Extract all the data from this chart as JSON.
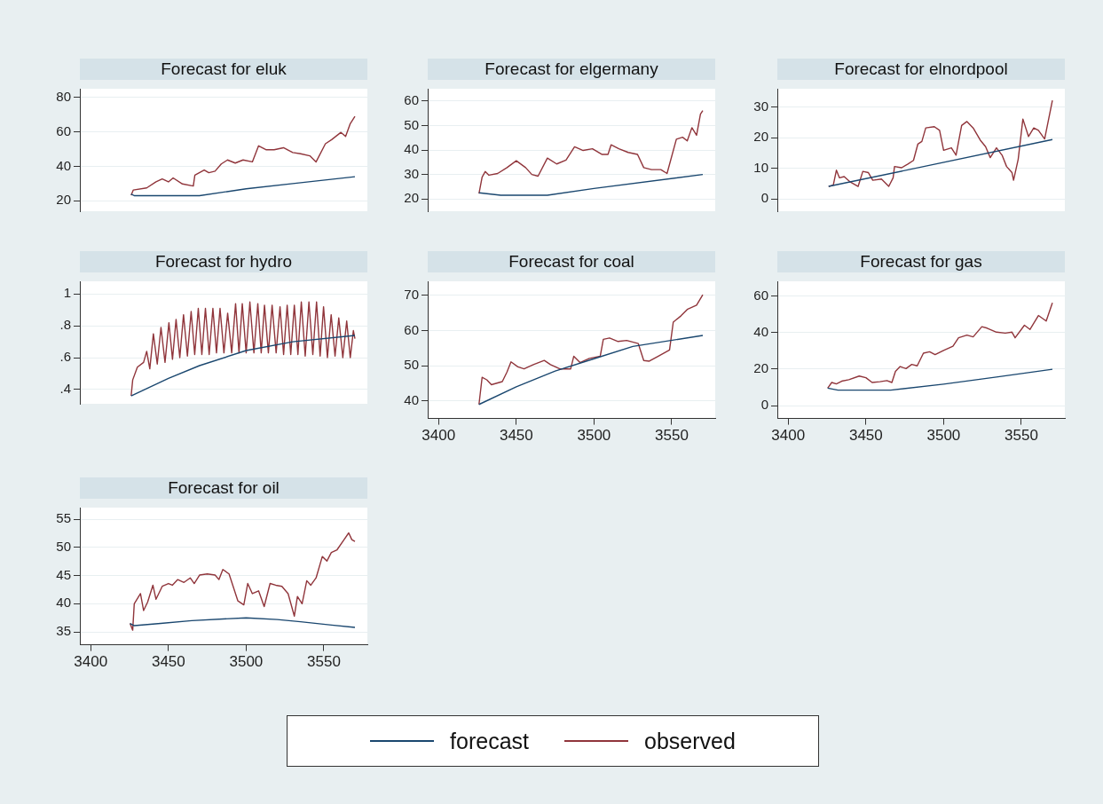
{
  "chart_data": [
    {
      "type": "line",
      "title": "Forecast for eluk",
      "xlim": [
        3393,
        3578
      ],
      "xticks": [
        3400,
        3450,
        3500,
        3550
      ],
      "ylim": [
        14,
        85
      ],
      "yticks": [
        20,
        40,
        60,
        80
      ],
      "grid": "y",
      "tick_labels": "y",
      "legend": "bottom",
      "series": [
        {
          "name": "forecast",
          "color": "#1a476f",
          "x": [
            3426,
            3428,
            3470,
            3500,
            3530,
            3570
          ],
          "values": [
            24,
            23,
            23,
            27,
            30,
            34
          ]
        },
        {
          "name": "observed",
          "color": "#90353b",
          "x": [
            3426,
            3427.4,
            3436,
            3442,
            3446,
            3450,
            3453,
            3459,
            3466,
            3467,
            3473,
            3476,
            3480,
            3484,
            3488,
            3493,
            3498,
            3504,
            3508,
            3513,
            3518,
            3524,
            3530,
            3535,
            3541,
            3545,
            3551,
            3555,
            3561,
            3564,
            3567,
            3570
          ],
          "values": [
            23.3,
            26.3,
            27.5,
            31,
            32.7,
            31,
            33.3,
            29.8,
            28.6,
            34.9,
            37.9,
            36.3,
            37.2,
            41.4,
            43.7,
            41.9,
            43.7,
            42.6,
            51.9,
            49.6,
            49.6,
            50.8,
            48,
            47.3,
            46.1,
            42.6,
            53.1,
            55.5,
            59.7,
            57.3,
            64.8,
            69
          ]
        }
      ]
    },
    {
      "type": "line",
      "title": "Forecast for elgermany",
      "xlim": [
        3393,
        3578
      ],
      "xticks": [
        3400,
        3450,
        3500,
        3550
      ],
      "ylim": [
        15,
        65
      ],
      "yticks": [
        20,
        30,
        40,
        50,
        60
      ],
      "grid": "y",
      "tick_labels": "y",
      "series": [
        {
          "color": "#1a476f",
          "x": [
            3426,
            3440,
            3470,
            3500,
            3570
          ],
          "values": [
            22.5,
            21.5,
            21.5,
            24.3,
            30
          ]
        },
        {
          "color": "#90353b",
          "x": [
            3426,
            3428,
            3430,
            3432.4,
            3438,
            3444,
            3450,
            3456,
            3460,
            3464,
            3470,
            3476,
            3482,
            3487.5,
            3493,
            3499,
            3505,
            3509,
            3511,
            3516,
            3522,
            3528,
            3532,
            3537,
            3543,
            3547,
            3553,
            3557,
            3560,
            3563,
            3566,
            3568.5,
            3570
          ],
          "values": [
            22.2,
            28.9,
            31.2,
            29.7,
            30.4,
            32.8,
            35.6,
            32.8,
            30,
            29.3,
            36.7,
            34.3,
            35.9,
            41.3,
            39.8,
            40.5,
            38.2,
            38.2,
            42.1,
            40.5,
            39,
            38.2,
            32.8,
            32,
            32,
            30.4,
            44.4,
            45.2,
            43.7,
            49.1,
            46,
            54.6,
            56.1
          ]
        }
      ]
    },
    {
      "type": "line",
      "title": "Forecast for elnordpool",
      "xlim": [
        3393,
        3578
      ],
      "xticks": [
        3400,
        3450,
        3500,
        3550
      ],
      "ylim": [
        -4,
        36
      ],
      "yticks": [
        0,
        10,
        20,
        30
      ],
      "grid": "y",
      "tick_labels": "y",
      "series": [
        {
          "color": "#1a476f",
          "x": [
            3426,
            3570
          ],
          "values": [
            4.1,
            19.4
          ]
        },
        {
          "color": "#90353b",
          "x": [
            3426,
            3429,
            3431,
            3433,
            3436,
            3439.5,
            3445,
            3448,
            3451.6,
            3454.4,
            3460,
            3464.7,
            3467.5,
            3468.4,
            3473,
            3477,
            3480.6,
            3483.4,
            3486,
            3488.5,
            3494,
            3497.4,
            3500,
            3505,
            3508,
            3511.6,
            3515,
            3519,
            3523.6,
            3527,
            3530,
            3534,
            3537.6,
            3540.5,
            3544,
            3545,
            3548,
            3551,
            3554.6,
            3558,
            3561,
            3565,
            3570
          ],
          "values": [
            4.1,
            4.5,
            9.4,
            6.9,
            7.3,
            5.7,
            4.1,
            9,
            8.6,
            6.1,
            6.5,
            4.1,
            6.9,
            10.6,
            10.2,
            11.4,
            12.6,
            17.9,
            18.8,
            23.2,
            23.6,
            22.4,
            15.9,
            16.7,
            14.3,
            24,
            25.3,
            23.2,
            19.2,
            17.1,
            13.5,
            16.7,
            14.3,
            10.6,
            8.6,
            6.1,
            13,
            26.1,
            20.4,
            23.2,
            22.4,
            19.6,
            32.2
          ]
        }
      ]
    },
    {
      "type": "line",
      "title": "Forecast for hydro",
      "xlim": [
        3393,
        3578
      ],
      "xticks": [
        3400,
        3450,
        3500,
        3550
      ],
      "ylim": [
        0.31,
        1.08
      ],
      "yticks": [
        {
          "value": 0.4,
          "label": ".4"
        },
        {
          "value": 0.6,
          "label": ".6"
        },
        {
          "value": 0.8,
          "label": ".8"
        },
        1
      ],
      "grid": "y",
      "tick_labels": "y",
      "series": [
        {
          "color": "#1a476f",
          "x": [
            3426,
            3450,
            3470,
            3500,
            3530,
            3570
          ],
          "values": [
            0.36,
            0.47,
            0.55,
            0.645,
            0.7,
            0.74
          ]
        },
        {
          "color": "#90353b",
          "x": [
            3426,
            3427,
            3430,
            3434,
            3436,
            3438,
            3440.3,
            3442.8,
            3445.2,
            3447.8,
            3450.3,
            3452.6,
            3454.9,
            3457.3,
            3459.7,
            3462.2,
            3464.6,
            3466.9,
            3469.2,
            3471.5,
            3473.8,
            3476.2,
            3478.6,
            3480.9,
            3483.2,
            3485.7,
            3488.1,
            3490.7,
            3493.2,
            3495.4,
            3497.5,
            3500,
            3502.4,
            3505,
            3507.5,
            3509.7,
            3511.8,
            3514.3,
            3516.7,
            3519.3,
            3521.8,
            3524.1,
            3526.4,
            3528.7,
            3531,
            3533.3,
            3535.5,
            3538,
            3540.4,
            3542.9,
            3545.3,
            3547.6,
            3549.8,
            3552.3,
            3554.7,
            3557.2,
            3559.6,
            3562.2,
            3564.7,
            3567,
            3569,
            3570
          ],
          "values": [
            0.36,
            0.46,
            0.54,
            0.57,
            0.64,
            0.53,
            0.75,
            0.56,
            0.79,
            0.57,
            0.82,
            0.59,
            0.84,
            0.6,
            0.87,
            0.61,
            0.89,
            0.62,
            0.91,
            0.62,
            0.91,
            0.62,
            0.91,
            0.63,
            0.91,
            0.63,
            0.88,
            0.63,
            0.94,
            0.63,
            0.94,
            0.63,
            0.95,
            0.63,
            0.94,
            0.63,
            0.93,
            0.63,
            0.93,
            0.63,
            0.92,
            0.62,
            0.93,
            0.62,
            0.93,
            0.62,
            0.95,
            0.61,
            0.95,
            0.62,
            0.95,
            0.61,
            0.92,
            0.6,
            0.87,
            0.61,
            0.85,
            0.6,
            0.83,
            0.6,
            0.77,
            0.72
          ]
        }
      ]
    },
    {
      "type": "line",
      "title": "Forecast for coal",
      "xlim": [
        3393,
        3578
      ],
      "xticks": [
        3400,
        3450,
        3500,
        3550
      ],
      "ylim": [
        35,
        74
      ],
      "yticks": [
        40,
        50,
        60,
        70
      ],
      "grid": "y",
      "series": [
        {
          "color": "#1a476f",
          "x": [
            3426,
            3450,
            3475,
            3500,
            3525,
            3570
          ],
          "values": [
            39,
            44,
            48.5,
            52,
            55.5,
            58.6
          ]
        },
        {
          "color": "#90353b",
          "x": [
            3426,
            3428,
            3431,
            3434,
            3441,
            3444,
            3446.6,
            3451,
            3455,
            3461,
            3468,
            3472,
            3478,
            3485,
            3487,
            3491,
            3497,
            3504,
            3506,
            3510,
            3515.5,
            3521,
            3528.5,
            3532,
            3535.6,
            3541.4,
            3548.6,
            3551,
            3556,
            3560,
            3566,
            3570
          ],
          "values": [
            39,
            46.7,
            46,
            44.6,
            45.5,
            48.2,
            51.1,
            49.7,
            49.1,
            50.3,
            51.5,
            50.3,
            49.1,
            49.1,
            52.7,
            50.9,
            52.1,
            52.7,
            57.5,
            57.9,
            56.9,
            57.2,
            56.3,
            51.5,
            51.3,
            52.7,
            54.5,
            62.4,
            64.2,
            66,
            67.2,
            70.2
          ]
        }
      ]
    },
    {
      "type": "line",
      "title": "Forecast for gas",
      "xlim": [
        3393,
        3578
      ],
      "xticks": [
        3400,
        3450,
        3500,
        3550
      ],
      "ylim": [
        -7,
        68
      ],
      "yticks": [
        0,
        20,
        40,
        60
      ],
      "grid": "y",
      "series": [
        {
          "color": "#1a476f",
          "x": [
            3425.4,
            3432,
            3466,
            3500,
            3535,
            3570
          ],
          "values": [
            9.6,
            8.5,
            8.5,
            11.8,
            15.8,
            19.9
          ]
        },
        {
          "color": "#90353b",
          "x": [
            3425.4,
            3428,
            3431,
            3434.4,
            3439,
            3445.7,
            3450,
            3454,
            3459,
            3463.5,
            3466.7,
            3469,
            3472,
            3475.8,
            3479.5,
            3483,
            3487,
            3491,
            3494.5,
            3500,
            3506,
            3509.6,
            3515,
            3519,
            3524.6,
            3528,
            3534,
            3539.7,
            3544,
            3546,
            3552,
            3555.6,
            3561,
            3566,
            3570
          ],
          "values": [
            9.6,
            12.7,
            11.9,
            13.4,
            14.2,
            16.2,
            15.3,
            12.7,
            13.1,
            13.7,
            12.7,
            18.8,
            21.4,
            20.3,
            22.6,
            21.8,
            28.7,
            29.5,
            27.9,
            30.2,
            32.5,
            37.1,
            38.6,
            37.6,
            43.2,
            42.4,
            40.2,
            39.7,
            40.2,
            37.1,
            44,
            41.7,
            49.3,
            46.3,
            56.2
          ]
        }
      ]
    },
    {
      "type": "line",
      "title": "Forecast for oil",
      "xlim": [
        3393,
        3578
      ],
      "xticks": [
        3400,
        3450,
        3500,
        3550
      ],
      "ylim": [
        32.7,
        57.1
      ],
      "yticks": [
        35,
        40,
        45,
        50,
        55
      ],
      "grid": "y",
      "series": [
        {
          "color": "#1a476f",
          "x": [
            3425.3,
            3428,
            3445,
            3465,
            3500,
            3520,
            3535,
            3555,
            3570
          ],
          "values": [
            36.5,
            36.1,
            36.5,
            37,
            37.5,
            37.2,
            36.8,
            36.2,
            35.8
          ]
        },
        {
          "color": "#90353b",
          "x": [
            3425.3,
            3427,
            3428,
            3432,
            3434,
            3436.6,
            3440,
            3442,
            3446,
            3450,
            3452.5,
            3456,
            3460,
            3464,
            3466.6,
            3470,
            3475,
            3480,
            3482.5,
            3485,
            3489,
            3494.7,
            3498.5,
            3501,
            3504,
            3508,
            3511.6,
            3515.4,
            3519,
            3523,
            3527,
            3531,
            3533,
            3536,
            3539,
            3541.6,
            3545,
            3549,
            3552,
            3554.8,
            3558.5,
            3563,
            3566,
            3568,
            3570
          ],
          "values": [
            36.5,
            35.3,
            40,
            41.8,
            38.8,
            40.3,
            43.3,
            40.8,
            43.1,
            43.6,
            43.3,
            44.3,
            43.8,
            44.6,
            43.6,
            45.1,
            45.3,
            45.1,
            44.3,
            46.1,
            45.3,
            40.5,
            39.8,
            43.6,
            41.8,
            42.3,
            39.5,
            43.6,
            43.3,
            43.1,
            41.8,
            37.8,
            41.3,
            40,
            44.1,
            43.3,
            44.6,
            48.4,
            47.6,
            49.1,
            49.6,
            51.4,
            52.6,
            51.4,
            51.1
          ]
        }
      ]
    }
  ]
}
